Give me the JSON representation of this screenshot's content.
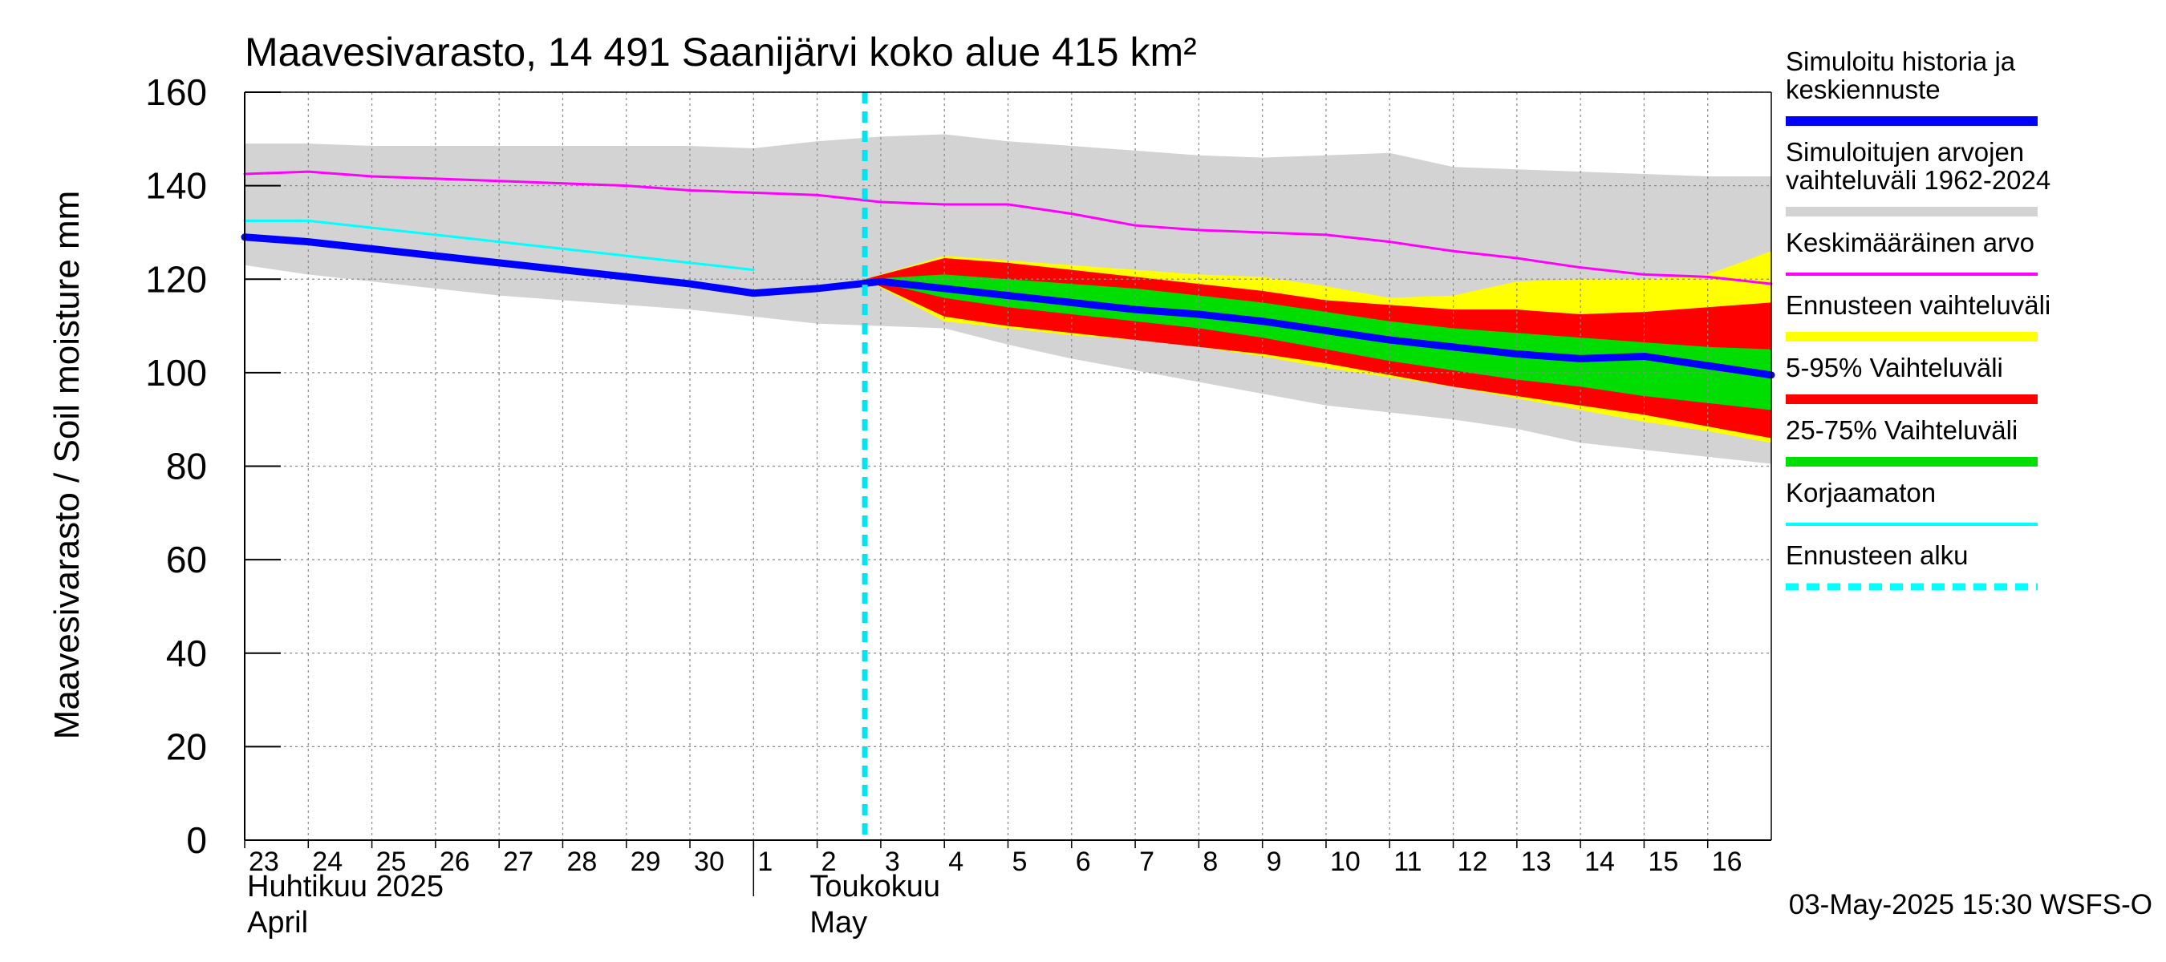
{
  "chart_data": {
    "type": "line",
    "title": "Maavesivarasto, 14 491 Saanijärvi koko alue 415 km²",
    "ylabel": "Maavesivarasto / Soil moisture   mm",
    "ylim": [
      0,
      160
    ],
    "yticks": [
      0,
      20,
      40,
      60,
      80,
      100,
      120,
      140,
      160
    ],
    "grid": true,
    "x_start_day": 23,
    "x_end_day": 40,
    "day_ticks": [
      {
        "day": 23,
        "label": "23"
      },
      {
        "day": 24,
        "label": "24"
      },
      {
        "day": 25,
        "label": "25"
      },
      {
        "day": 26,
        "label": "26"
      },
      {
        "day": 27,
        "label": "27"
      },
      {
        "day": 28,
        "label": "28"
      },
      {
        "day": 29,
        "label": "29"
      },
      {
        "day": 30,
        "label": "30"
      },
      {
        "day": 31,
        "label": "1"
      },
      {
        "day": 32,
        "label": "2"
      },
      {
        "day": 33,
        "label": "3"
      },
      {
        "day": 34,
        "label": "4"
      },
      {
        "day": 35,
        "label": "5"
      },
      {
        "day": 36,
        "label": "6"
      },
      {
        "day": 37,
        "label": "7"
      },
      {
        "day": 38,
        "label": "8"
      },
      {
        "day": 39,
        "label": "9"
      },
      {
        "day": 40,
        "label": "10"
      },
      {
        "day": 41,
        "label": "11"
      },
      {
        "day": 42,
        "label": "12"
      },
      {
        "day": 43,
        "label": "13"
      },
      {
        "day": 44,
        "label": "14"
      },
      {
        "day": 45,
        "label": "15"
      },
      {
        "day": 46,
        "label": "16"
      }
    ],
    "x_domain": [
      23,
      47
    ],
    "month_divider_day": 31,
    "month_labels": {
      "april_fi": "Huhtikuu  2025",
      "april_en": "April",
      "may_fi": "Toukokuu",
      "may_en": "May"
    },
    "forecast_start_day": 32.75,
    "series": [
      {
        "name": "Simuloitujen arvojen vaihteluväli 1962-2024",
        "kind": "band",
        "color": "#d3d3d3",
        "x": [
          23,
          24,
          25,
          26,
          27,
          28,
          29,
          30,
          31,
          32,
          33,
          34,
          35,
          36,
          37,
          38,
          39,
          40,
          41,
          42,
          43,
          44,
          45,
          46,
          47
        ],
        "upper": [
          149,
          149,
          148.5,
          148.5,
          148.5,
          148.5,
          148.5,
          148.5,
          148,
          149.5,
          150.5,
          151,
          149.5,
          148.5,
          147.5,
          146.5,
          146,
          146.5,
          147,
          144,
          143.5,
          143,
          142.5,
          142,
          142
        ],
        "lower": [
          123,
          121,
          119.5,
          118,
          116.5,
          115.5,
          114.5,
          113.5,
          112,
          110.5,
          110,
          109.5,
          106,
          103,
          100.5,
          98,
          95.5,
          93,
          91.5,
          90,
          88,
          85,
          83.5,
          82,
          80.5
        ]
      },
      {
        "name": "Ennusteen vaihteluväli",
        "kind": "band",
        "color": "#ffff00",
        "x": [
          32.75,
          34,
          35,
          36,
          37,
          38,
          39,
          40,
          41,
          42,
          43,
          44,
          45,
          46,
          47
        ],
        "upper": [
          120,
          125,
          124,
          123,
          122,
          121,
          120.5,
          118.5,
          116,
          116.5,
          119.5,
          120,
          120,
          121,
          126
        ],
        "lower": [
          120,
          111,
          109.5,
          108,
          107,
          105.5,
          103.5,
          101,
          99,
          97,
          94.5,
          92,
          89.5,
          87.5,
          85
        ]
      },
      {
        "name": "5-95% Vaihteluväli",
        "kind": "band",
        "color": "#ff0000",
        "x": [
          32.75,
          34,
          35,
          36,
          37,
          38,
          39,
          40,
          41,
          42,
          43,
          44,
          45,
          46,
          47
        ],
        "upper": [
          120,
          124.5,
          123.5,
          122,
          120.5,
          119,
          117.5,
          115.5,
          114.5,
          113.5,
          113.5,
          112.5,
          113,
          114,
          115
        ],
        "lower": [
          120,
          112,
          110,
          108.5,
          107,
          105.5,
          104,
          102,
          99.5,
          97,
          95,
          93,
          91,
          88.5,
          86
        ]
      },
      {
        "name": "25-75% Vaihteluväli",
        "kind": "band",
        "color": "#00dd00",
        "x": [
          32.75,
          34,
          35,
          36,
          37,
          38,
          39,
          40,
          41,
          42,
          43,
          44,
          45,
          46,
          47
        ],
        "upper": [
          120,
          121,
          120,
          119,
          118,
          116.5,
          115,
          113,
          111,
          109.5,
          108.5,
          107.5,
          106.5,
          105.5,
          105
        ],
        "lower": [
          120,
          116,
          114,
          112.5,
          111,
          109.5,
          107.5,
          105,
          102.5,
          100.5,
          98.5,
          97,
          95,
          93.5,
          92
        ]
      },
      {
        "name": "Keskimääräinen arvo",
        "kind": "line",
        "color": "#ff00ff",
        "width": 3,
        "x": [
          23,
          24,
          25,
          26,
          27,
          28,
          29,
          30,
          31,
          32,
          33,
          34,
          35,
          36,
          37,
          38,
          39,
          40,
          41,
          42,
          43,
          44,
          45,
          46,
          47
        ],
        "y": [
          142.5,
          143,
          142,
          141.5,
          141,
          140.5,
          140,
          139,
          138.5,
          138,
          136.5,
          136,
          136,
          134,
          131.5,
          130.5,
          130,
          129.5,
          128,
          126,
          124.5,
          122.5,
          121,
          120.5,
          119
        ]
      },
      {
        "name": "Korjaamaton",
        "kind": "line",
        "color": "#00ffff",
        "width": 3,
        "x": [
          23,
          24,
          25,
          26,
          27,
          28,
          29,
          30,
          31
        ],
        "y": [
          132.5,
          132.5,
          131,
          129.5,
          128,
          126.5,
          125,
          123.5,
          122
        ]
      },
      {
        "name": "Simuloitu historia ja keskiennuste",
        "kind": "line",
        "color": "#0000ff",
        "width": 9,
        "x": [
          23,
          24,
          25,
          26,
          27,
          28,
          29,
          30,
          31,
          32,
          33,
          34,
          35,
          36,
          37,
          38,
          39,
          40,
          41,
          42,
          43,
          44,
          45,
          46,
          47
        ],
        "y": [
          129,
          128,
          126.5,
          125,
          123.5,
          122,
          120.5,
          119,
          117,
          118,
          119.5,
          118,
          116.5,
          115,
          113.5,
          112.5,
          111,
          109,
          107,
          105.5,
          104,
          103,
          103.5,
          101.5,
          99.5
        ]
      }
    ],
    "legend": {
      "position": "right",
      "entries": [
        {
          "lines": [
            "Simuloitu historia ja",
            "keskiennuste"
          ],
          "color": "#0000ff",
          "style": "solid"
        },
        {
          "lines": [
            "Simuloitujen arvojen",
            "vaihteluväli 1962-2024"
          ],
          "color": "#d3d3d3",
          "style": "solid"
        },
        {
          "lines": [
            "Keskimääräinen arvo"
          ],
          "color": "#ff00ff",
          "style": "thin"
        },
        {
          "lines": [
            "Ennusteen vaihteluväli"
          ],
          "color": "#ffff00",
          "style": "solid"
        },
        {
          "lines": [
            "5-95% Vaihteluväli"
          ],
          "color": "#ff0000",
          "style": "solid"
        },
        {
          "lines": [
            "25-75% Vaihteluväli"
          ],
          "color": "#00dd00",
          "style": "solid"
        },
        {
          "lines": [
            "Korjaamaton"
          ],
          "color": "#00ffff",
          "style": "thin"
        },
        {
          "lines": [
            "Ennusteen alku"
          ],
          "color": "#00ffff",
          "style": "dashed"
        }
      ]
    },
    "timestamp": "03-May-2025 15:30 WSFS-O"
  }
}
